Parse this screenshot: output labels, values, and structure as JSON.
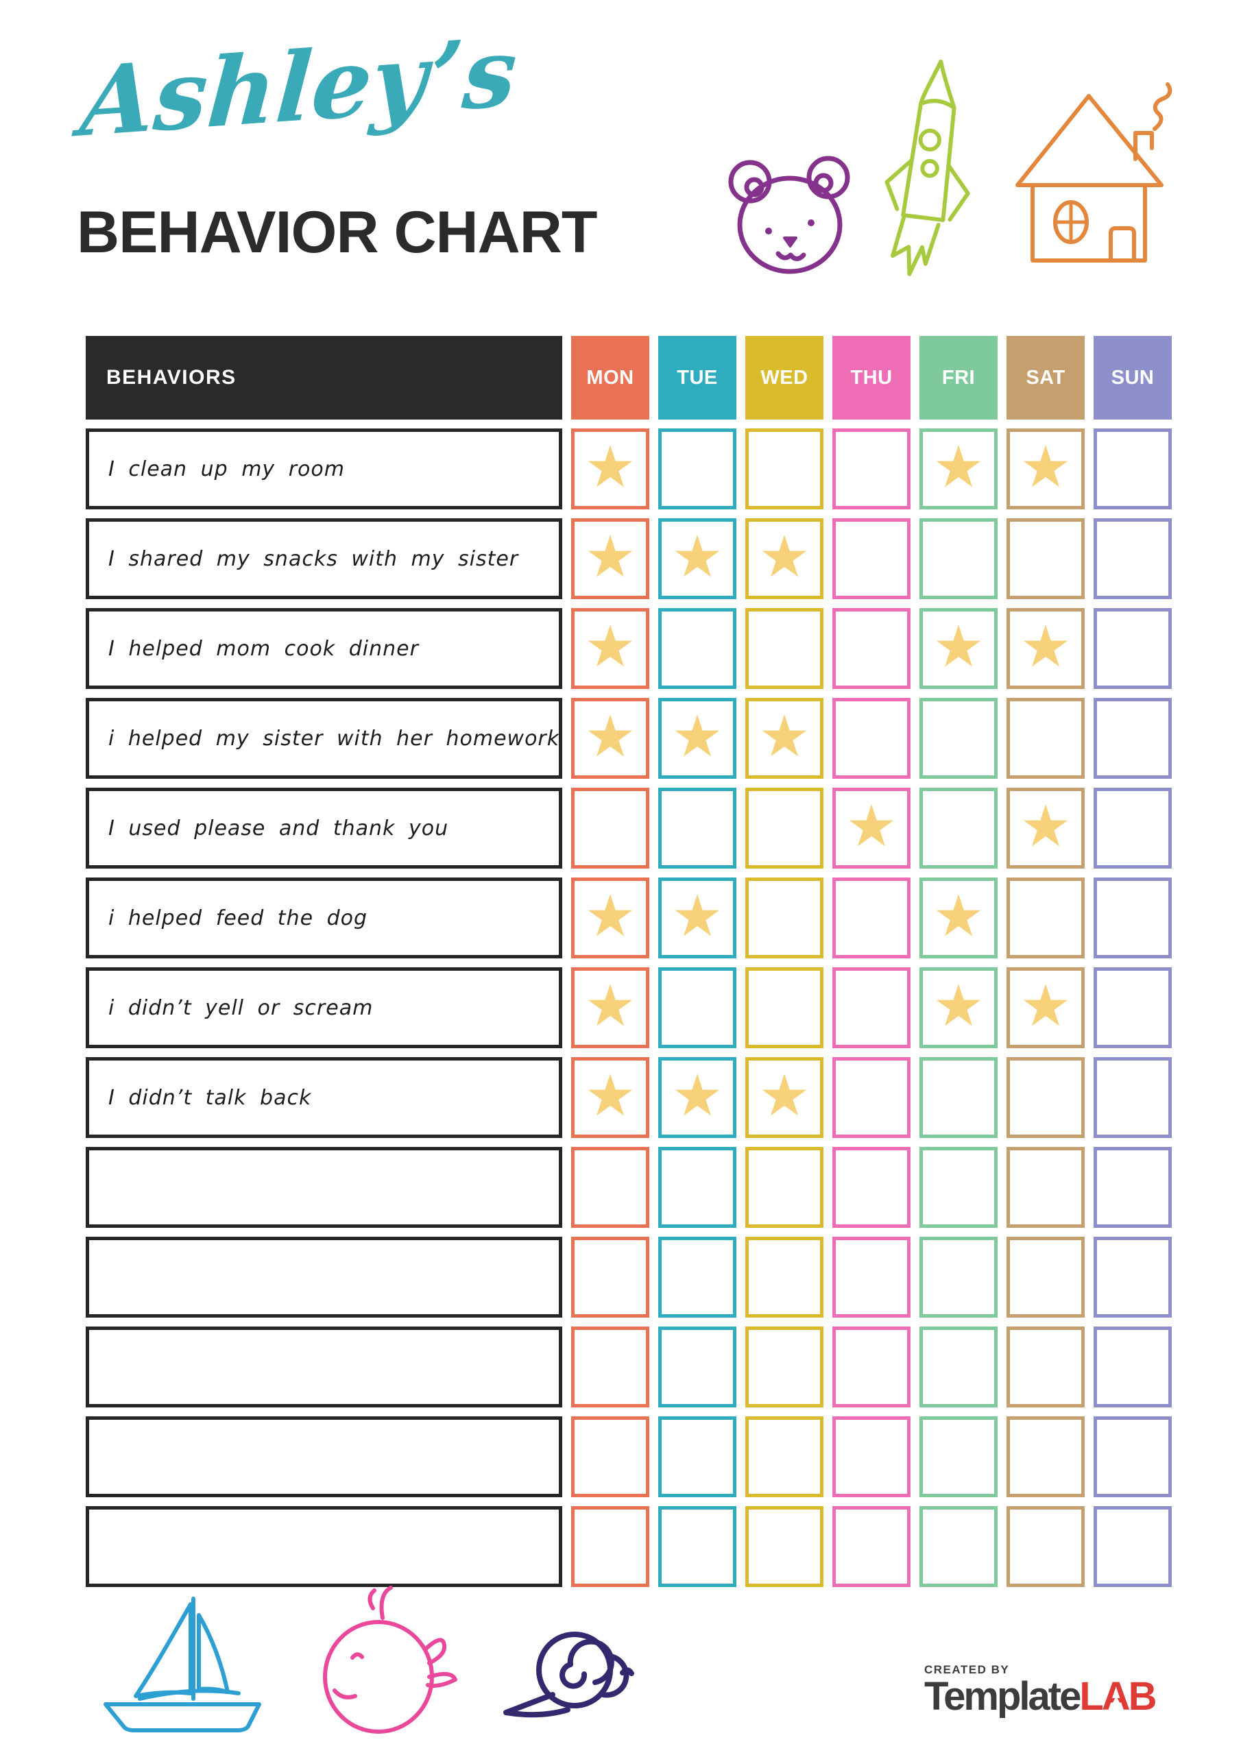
{
  "header": {
    "name_script": "Ashley’s",
    "title": "BEHAVIOR CHART",
    "accent_color": "#3aaab8",
    "title_color": "#2b2b2b"
  },
  "doodles": {
    "bear_icon_color": "#84328b",
    "rocket_icon_color": "#a6c93d",
    "house_icon_color": "#e3873d",
    "sailboat_icon_color": "#2d9fd3",
    "whale_icon_color": "#e9489b",
    "snail_icon_color": "#34296e"
  },
  "table": {
    "behaviors_header": "BEHAVIORS",
    "header_bg": "#2a2a2a",
    "star_glyph": "★",
    "star_color": "#f6d17a",
    "days": [
      {
        "label": "MON",
        "color": "#e97254"
      },
      {
        "label": "TUE",
        "color": "#2fadbf"
      },
      {
        "label": "WED",
        "color": "#d9bb2c"
      },
      {
        "label": "THU",
        "color": "#ef6db5"
      },
      {
        "label": "FRI",
        "color": "#7fca9d"
      },
      {
        "label": "SAT",
        "color": "#c59f6e"
      },
      {
        "label": "SUN",
        "color": "#8c8fc9"
      }
    ],
    "rows": [
      {
        "behavior": "I clean up my room",
        "stars": [
          1,
          0,
          0,
          0,
          1,
          1,
          0
        ]
      },
      {
        "behavior": "I shared my snacks with my sister",
        "stars": [
          1,
          1,
          1,
          0,
          0,
          0,
          0
        ]
      },
      {
        "behavior": "I helped mom cook dinner",
        "stars": [
          1,
          0,
          0,
          0,
          1,
          1,
          0
        ]
      },
      {
        "behavior": "i helped my sister with her homework",
        "stars": [
          1,
          1,
          1,
          0,
          0,
          0,
          0
        ]
      },
      {
        "behavior": "I used please and thank you",
        "stars": [
          0,
          0,
          0,
          1,
          0,
          1,
          0
        ]
      },
      {
        "behavior": "i helped feed the dog",
        "stars": [
          1,
          1,
          0,
          0,
          1,
          0,
          0
        ]
      },
      {
        "behavior": "i didn’t yell or scream",
        "stars": [
          1,
          0,
          0,
          0,
          1,
          1,
          0
        ]
      },
      {
        "behavior": "I didn’t talk back",
        "stars": [
          1,
          1,
          1,
          0,
          0,
          0,
          0
        ]
      },
      {
        "behavior": "",
        "stars": [
          0,
          0,
          0,
          0,
          0,
          0,
          0
        ]
      },
      {
        "behavior": "",
        "stars": [
          0,
          0,
          0,
          0,
          0,
          0,
          0
        ]
      },
      {
        "behavior": "",
        "stars": [
          0,
          0,
          0,
          0,
          0,
          0,
          0
        ]
      },
      {
        "behavior": "",
        "stars": [
          0,
          0,
          0,
          0,
          0,
          0,
          0
        ]
      },
      {
        "behavior": "",
        "stars": [
          0,
          0,
          0,
          0,
          0,
          0,
          0
        ]
      }
    ]
  },
  "footer": {
    "created_by": "CREATED BY",
    "brand_part1": "Template",
    "brand_lab_letters": [
      "L",
      "A",
      "B"
    ],
    "brand_color_dark": "#3c3c3c",
    "brand_color_red": "#de3b37"
  }
}
